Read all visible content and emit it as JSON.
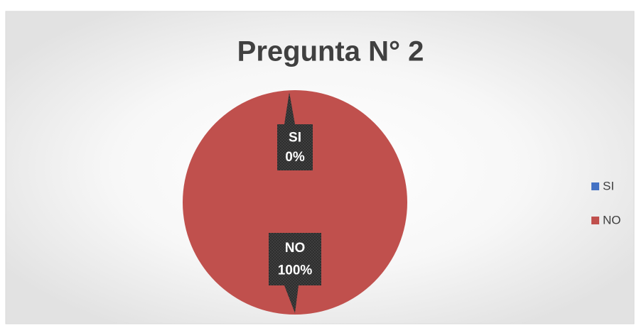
{
  "chart_data": {
    "type": "pie",
    "title": "Pregunta N° 2",
    "categories": [
      "SI",
      "NO"
    ],
    "values": [
      0,
      100
    ],
    "value_labels": [
      "0%",
      "100%"
    ],
    "colors": [
      "#4472c4",
      "#c0504d"
    ],
    "legend": "right"
  }
}
